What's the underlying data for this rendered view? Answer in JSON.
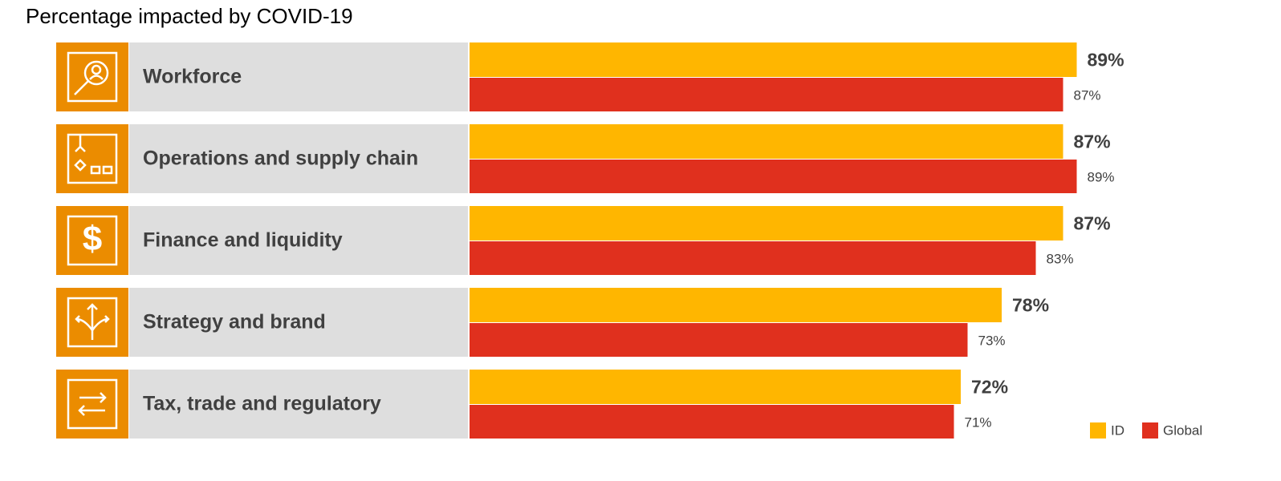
{
  "chart_data": {
    "type": "bar",
    "orientation": "horizontal",
    "title": "Percentage impacted by COVID-19",
    "categories": [
      "Workforce",
      "Operations and supply chain",
      "Finance and liquidity",
      "Strategy and brand",
      "Tax, trade and regulatory"
    ],
    "series": [
      {
        "name": "ID",
        "color": "#FFB600",
        "values": [
          89,
          87,
          87,
          78,
          72
        ],
        "value_labels": [
          "89%",
          "87%",
          "87%",
          "78%",
          "72%"
        ]
      },
      {
        "name": "Global",
        "color": "#E0301E",
        "values": [
          87,
          89,
          83,
          73,
          71
        ],
        "value_labels": [
          "87%",
          "89%",
          "83%",
          "73%",
          "71%"
        ]
      }
    ],
    "legend": "lower right"
  }
}
